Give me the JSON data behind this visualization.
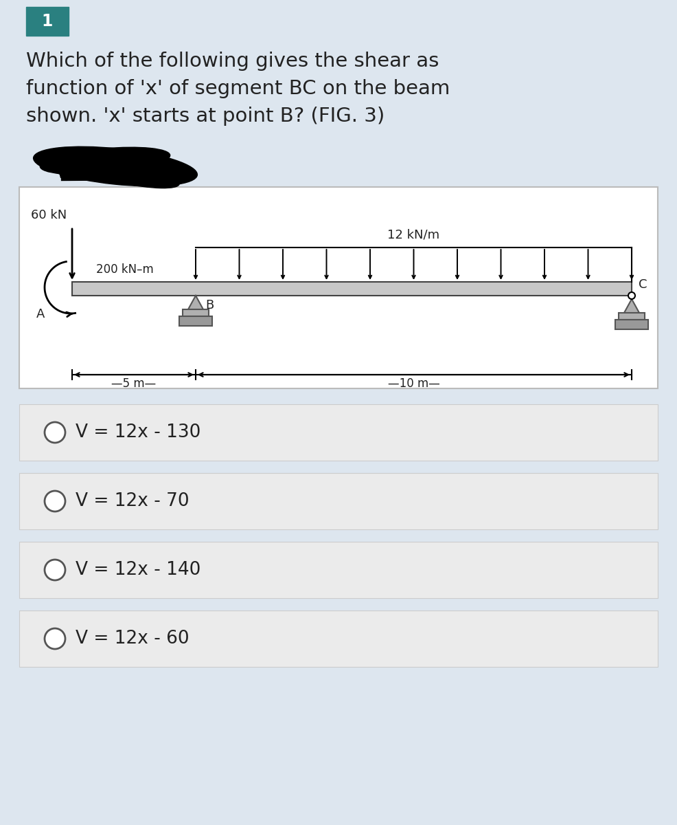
{
  "bg_color": "#dde6ef",
  "diagram_bg": "#ffffff",
  "answer_bg": "#ebebeb",
  "number_badge_color": "#2a8080",
  "number_badge_text": "1",
  "question_text": "Which of the following gives the shear as\nfunction of 'x' of segment BC on the beam\nshown. 'x' starts at point B? (FIG. 3)",
  "load_60kN": "60 kN",
  "load_dist": "12 kN/m",
  "moment_label": "200 kN–m",
  "label_A": "A",
  "label_B": "B",
  "label_C": "C",
  "dim_5m": "—5 m—",
  "dim_10m": "—10 m—",
  "options": [
    "V = 12x - 130",
    "V = 12x - 70",
    "V = 12x - 140",
    "V = 12x - 60"
  ],
  "text_color": "#222222",
  "beam_color": "#c8c8c8",
  "beam_edge_color": "#444444",
  "support_color": "#b0b0b0",
  "support_edge": "#555555"
}
